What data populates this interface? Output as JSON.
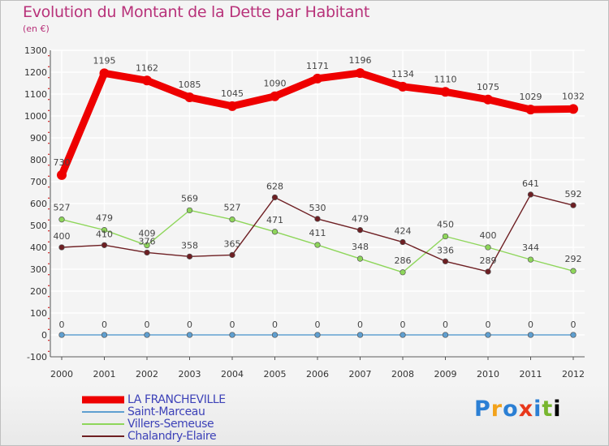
{
  "chart_data": {
    "type": "line",
    "title": "Evolution du Montant de la Dette par Habitant",
    "subtitle": "(en €)",
    "xlabel": "",
    "ylabel": "",
    "x": [
      "2000",
      "2001",
      "2002",
      "2003",
      "2004",
      "2005",
      "2006",
      "2007",
      "2008",
      "2009",
      "2010",
      "2011",
      "2012"
    ],
    "ylim": [
      -100,
      1300
    ],
    "yticks": [
      -100,
      0,
      100,
      200,
      300,
      400,
      500,
      600,
      700,
      800,
      900,
      1000,
      1100,
      1200,
      1300
    ],
    "grid": true,
    "legend_position": "bottom-left",
    "series": [
      {
        "name": "LA FRANCHEVILLE",
        "color": "#ee0000",
        "values": [
          730,
          1195,
          1162,
          1085,
          1045,
          1090,
          1171,
          1196,
          1134,
          1110,
          1075,
          1029,
          1032
        ]
      },
      {
        "name": "Saint-Marceau",
        "color": "#5f9fd0",
        "values": [
          0,
          0,
          0,
          0,
          0,
          0,
          0,
          0,
          0,
          0,
          0,
          0,
          0
        ]
      },
      {
        "name": "Villers-Semeuse",
        "color": "#8ed65a",
        "values": [
          527,
          479,
          409,
          569,
          527,
          471,
          411,
          348,
          286,
          450,
          400,
          344,
          292
        ]
      },
      {
        "name": "Chalandry-Elaire",
        "color": "#6e1f23",
        "values": [
          400,
          410,
          376,
          358,
          365,
          628,
          530,
          479,
          424,
          336,
          289,
          641,
          592
        ]
      }
    ]
  },
  "logo": {
    "letters": [
      "P",
      "r",
      "o",
      "x",
      "i",
      "t",
      "i"
    ],
    "text": "Proxiti"
  }
}
